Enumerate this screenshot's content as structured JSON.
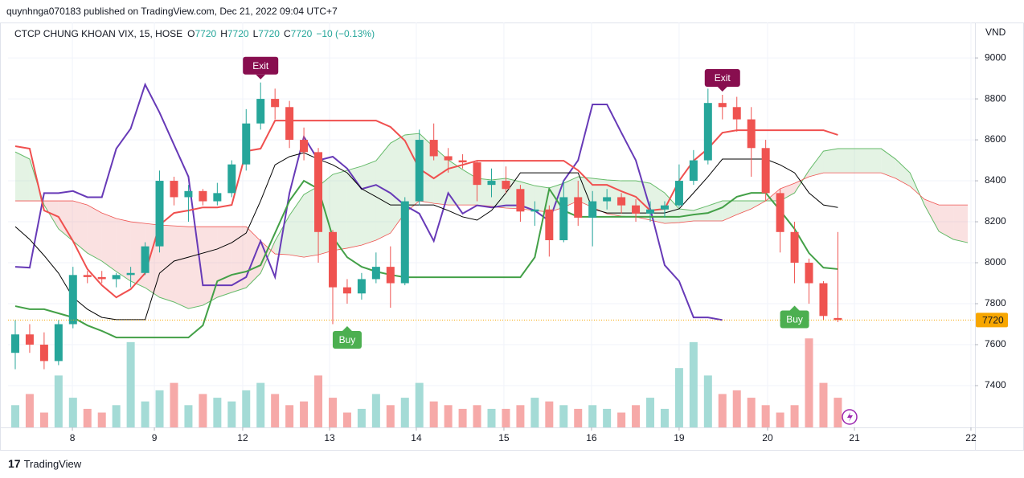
{
  "header": {
    "publisher": "quynhnga070183 published on TradingView.com, Dec 21, 2022 09:04 UTC+7",
    "symbol": "CTCP CHUNG KHOAN VIX, 15, HOSE",
    "ohlc_labels": [
      "O",
      "H",
      "L",
      "C"
    ],
    "ohlc_values": [
      7720,
      7720,
      7720,
      7720
    ],
    "change_label": "−10 (−0.13%)"
  },
  "footer": {
    "brand": "TradingView"
  },
  "chart_data": {
    "type": "candlestick",
    "currency": "VND",
    "x": [
      0,
      1,
      2,
      3,
      4,
      5,
      6,
      7,
      8,
      9,
      10,
      11,
      12,
      13,
      14,
      15,
      16,
      17,
      18,
      19,
      20,
      21,
      22,
      23,
      24,
      25,
      26,
      27,
      28,
      29,
      30,
      31,
      32,
      33,
      34,
      35,
      36,
      37,
      38,
      39,
      40,
      41,
      42,
      43,
      44,
      45,
      46,
      47,
      48,
      49,
      50,
      51,
      52,
      53,
      54,
      55,
      56,
      57
    ],
    "open": [
      7560,
      7650,
      7600,
      7520,
      7700,
      7940,
      7930,
      7920,
      7940,
      7950,
      8080,
      8400,
      8320,
      8350,
      8300,
      8340,
      8480,
      8680,
      8800,
      8760,
      8600,
      8540,
      8150,
      7880,
      7850,
      7920,
      7980,
      7900,
      8300,
      8600,
      8520,
      8500,
      8490,
      8380,
      8400,
      8360,
      8250,
      8260,
      8110,
      8320,
      8220,
      8300,
      8320,
      8280,
      8240,
      8260,
      8280,
      8400,
      8500,
      8780,
      8760,
      8700,
      8560,
      8340,
      8150,
      8000,
      7900,
      7730
    ],
    "high": [
      7720,
      7700,
      7660,
      7720,
      7980,
      7960,
      7960,
      7950,
      7980,
      8100,
      8450,
      8420,
      8380,
      8360,
      8390,
      8500,
      8750,
      8880,
      8850,
      8790,
      8660,
      8560,
      8160,
      7920,
      7950,
      8050,
      8080,
      8320,
      8650,
      8680,
      8560,
      8530,
      8500,
      8460,
      8470,
      8380,
      8300,
      8280,
      8400,
      8400,
      8350,
      8360,
      8340,
      8310,
      8300,
      8300,
      8480,
      8550,
      8850,
      8820,
      8810,
      8760,
      8600,
      8360,
      8200,
      8020,
      7910,
      8150
    ],
    "low": [
      7480,
      7560,
      7480,
      7500,
      7680,
      7900,
      7900,
      7880,
      7880,
      7940,
      8050,
      8280,
      8200,
      8280,
      8280,
      8320,
      8450,
      8650,
      8700,
      8560,
      8500,
      8000,
      7700,
      7800,
      7820,
      7900,
      7780,
      7890,
      8280,
      8500,
      8440,
      8460,
      8300,
      8320,
      8340,
      8200,
      8180,
      8030,
      8100,
      8180,
      8080,
      8260,
      8240,
      8200,
      8200,
      8220,
      8270,
      8380,
      8480,
      8700,
      8640,
      8420,
      8300,
      8050,
      7900,
      7800,
      7720,
      7710
    ],
    "close": [
      7650,
      7600,
      7520,
      7700,
      7940,
      7930,
      7920,
      7940,
      7950,
      8080,
      8400,
      8320,
      8350,
      8300,
      8340,
      8480,
      8680,
      8800,
      8760,
      8600,
      8540,
      8150,
      7880,
      7850,
      7920,
      7980,
      7900,
      8300,
      8600,
      8520,
      8500,
      8490,
      8380,
      8400,
      8360,
      8250,
      8260,
      8110,
      8320,
      8220,
      8300,
      8320,
      8280,
      8240,
      8260,
      8280,
      8400,
      8500,
      8780,
      8760,
      8700,
      8560,
      8340,
      8150,
      8000,
      7900,
      7740,
      7720
    ],
    "up_color": "#26a69a",
    "down_color": "#ef5350",
    "volume": {
      "ylim": [
        0,
        130
      ],
      "up_color": "#a4dbd6",
      "down_color": "#f6a9a8",
      "values": [
        30,
        45,
        20,
        70,
        40,
        25,
        20,
        30,
        115,
        35,
        50,
        60,
        30,
        45,
        40,
        35,
        50,
        60,
        45,
        30,
        35,
        70,
        40,
        20,
        25,
        45,
        30,
        40,
        60,
        35,
        30,
        25,
        30,
        25,
        25,
        30,
        40,
        35,
        30,
        25,
        30,
        25,
        20,
        30,
        40,
        25,
        80,
        115,
        70,
        45,
        50,
        40,
        30,
        20,
        30,
        120,
        60,
        40
      ]
    },
    "series": [
      {
        "color": "#673ab7",
        "values": [
          7980,
          7976,
          8340,
          8340,
          8350,
          8320,
          8320,
          8557,
          8655,
          8870,
          8733,
          8576,
          8420,
          7890,
          7890,
          7890,
          7930,
          8106,
          7930,
          8340,
          8615,
          8500,
          8518,
          8460,
          8360,
          8380,
          8340,
          8280,
          8240,
          8106,
          8340,
          8240,
          8280,
          8270,
          8280,
          8280,
          8255,
          8204,
          8400,
          8500,
          8773,
          8773,
          8635,
          8500,
          8263,
          7988,
          7910,
          7733,
          7733,
          7720,
          null,
          null,
          null,
          null,
          null,
          null,
          null,
          null
        ]
      },
      {
        "color": "#f0504f",
        "values": [
          8569,
          8557,
          8255,
          8224,
          8106,
          7969,
          7890,
          7831,
          7871,
          7949,
          8184,
          8243,
          8255,
          8270,
          8270,
          8282,
          8545,
          8557,
          8694,
          8694,
          8694,
          8694,
          8694,
          8694,
          8694,
          8694,
          8663,
          8596,
          8459,
          8412,
          8459,
          8478,
          8498,
          8498,
          8498,
          8498,
          8498,
          8498,
          8498,
          8451,
          8380,
          8380,
          8349,
          8322,
          8255,
          8263,
          8400,
          8498,
          8557,
          8635,
          8647,
          8647,
          8647,
          8647,
          8647,
          8647,
          8647,
          8624
        ]
      },
      {
        "color": "#000000",
        "values": [
          8176,
          8114,
          8035,
          7949,
          7831,
          7773,
          7733,
          7722,
          7722,
          7722,
          7949,
          8008,
          8027,
          8047,
          8067,
          8098,
          8145,
          8302,
          8478,
          8518,
          8537,
          8506,
          8478,
          8439,
          8361,
          8322,
          8282,
          8282,
          8282,
          8282,
          8255,
          8224,
          8208,
          8255,
          8341,
          8439,
          8439,
          8439,
          8439,
          8439,
          8263,
          8243,
          8243,
          8243,
          8243,
          8243,
          8263,
          8341,
          8420,
          8506,
          8506,
          8506,
          8506,
          8478,
          8439,
          8341,
          8282,
          8270
        ]
      },
      {
        "color": "#43a047",
        "values": [
          7788,
          7773,
          7773,
          7753,
          7733,
          7694,
          7667,
          7635,
          7635,
          7635,
          7635,
          7635,
          7635,
          7694,
          7910,
          7941,
          7957,
          7988,
          8145,
          8302,
          8400,
          8361,
          8125,
          8027,
          7980,
          7957,
          7941,
          7929,
          7929,
          7929,
          7929,
          7929,
          7929,
          7929,
          7929,
          7929,
          8027,
          8361,
          8255,
          8224,
          8224,
          8224,
          8224,
          8224,
          8224,
          8224,
          8224,
          8235,
          8243,
          8270,
          8322,
          8341,
          8341,
          8255,
          8165,
          8047,
          7976,
          7969
        ]
      }
    ],
    "cloud": {
      "up_color": "#a5d6a7",
      "down_color": "#ef9a9a",
      "line_a_color": "#66bb6a",
      "line_b_color": "#ef5350",
      "x": [
        0,
        1,
        2,
        3,
        4,
        5,
        6,
        7,
        8,
        9,
        10,
        11,
        12,
        13,
        14,
        15,
        16,
        17,
        18,
        19,
        20,
        21,
        22,
        23,
        24,
        25,
        26,
        27,
        28,
        29,
        30,
        31,
        32,
        33,
        34,
        35,
        36,
        37,
        38,
        39,
        40,
        41,
        42,
        43,
        44,
        45,
        46,
        47,
        48,
        49,
        50,
        51,
        52,
        53,
        54,
        55,
        56,
        57,
        58,
        59,
        60,
        61,
        62,
        63,
        64,
        65,
        66
      ],
      "span_a": [
        8541,
        8506,
        8282,
        8165,
        8106,
        8047,
        8008,
        7957,
        7910,
        7878,
        7831,
        7808,
        7776,
        7792,
        7831,
        7855,
        7878,
        7949,
        8106,
        8231,
        8333,
        8373,
        8431,
        8451,
        8471,
        8498,
        8584,
        8624,
        8631,
        8565,
        8502,
        8455,
        8412,
        8404,
        8412,
        8396,
        8376,
        8365,
        8388,
        8420,
        8412,
        8404,
        8400,
        8400,
        8388,
        8341,
        8263,
        8255,
        8278,
        8302,
        8302,
        8302,
        8302,
        8302,
        8341,
        8451,
        8545,
        8557,
        8557,
        8557,
        8557,
        8506,
        8439,
        8282,
        8153,
        8114,
        8098
      ],
      "span_b": [
        8302,
        8302,
        8302,
        8302,
        8302,
        8282,
        8243,
        8216,
        8200,
        8192,
        8184,
        8180,
        8176,
        8176,
        8176,
        8176,
        8176,
        8106,
        8043,
        8039,
        8027,
        8039,
        8059,
        8071,
        8086,
        8110,
        8145,
        8243,
        8302,
        8290,
        8282,
        8282,
        8282,
        8275,
        8267,
        8263,
        8255,
        8247,
        8271,
        8302,
        8271,
        8239,
        8227,
        8224,
        8208,
        8192,
        8196,
        8204,
        8204,
        8204,
        8235,
        8263,
        8302,
        8361,
        8388,
        8420,
        8439,
        8439,
        8439,
        8439,
        8439,
        8412,
        8373,
        8310,
        8282,
        8282,
        8282
      ]
    },
    "signals": [
      {
        "label": "Exit",
        "x": 17,
        "side": "above",
        "color": "#880e4f"
      },
      {
        "label": "Buy",
        "x": 23,
        "side": "below",
        "color": "#4caf50"
      },
      {
        "label": "Exit",
        "x": 49,
        "side": "above",
        "color": "#880e4f"
      },
      {
        "label": "Buy",
        "x": 54,
        "side": "below",
        "color": "#4caf50"
      }
    ],
    "price_line_color": "#f7a600",
    "xlim": [
      -0.5,
      66.5
    ],
    "xticks": [
      {
        "value": 3.96,
        "label": "8"
      },
      {
        "value": 9.64,
        "label": "9"
      },
      {
        "value": 15.76,
        "label": "12"
      },
      {
        "value": 21.78,
        "label": "13"
      },
      {
        "value": 27.79,
        "label": "14"
      },
      {
        "value": 33.86,
        "label": "15"
      },
      {
        "value": 39.93,
        "label": "16"
      },
      {
        "value": 46.0,
        "label": "19"
      },
      {
        "value": 52.13,
        "label": "20"
      },
      {
        "value": 58.15,
        "label": "21"
      },
      {
        "value": 66.22,
        "label": "22"
      }
    ],
    "ylim": [
      7196,
      9173
    ],
    "yticks": [
      7400,
      7600,
      7800,
      8000,
      8200,
      8400,
      8600,
      8800,
      9000
    ],
    "grid": true
  }
}
